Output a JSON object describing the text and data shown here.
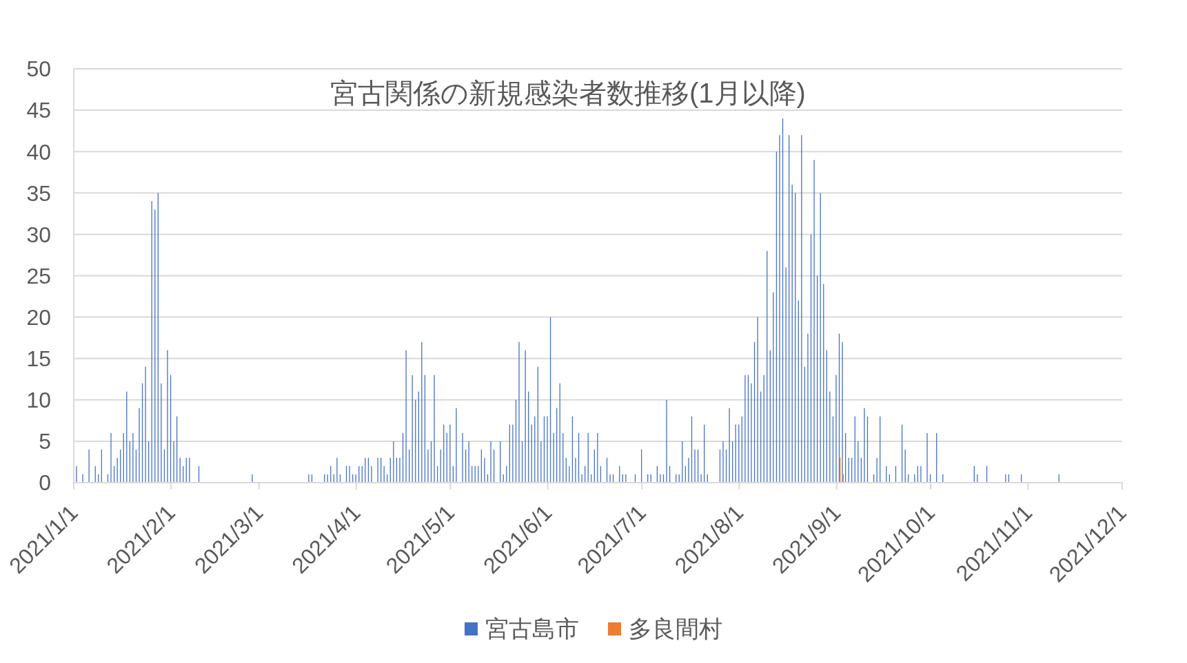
{
  "chart_data": {
    "type": "bar",
    "title": "宮古関係の新規感染者数推移(1月以降)",
    "xlim": [
      "2021-01-01",
      "2021-12-01"
    ],
    "xticks": [
      {
        "value": "2021-01-01",
        "label": "2021/1/1"
      },
      {
        "value": "2021-02-01",
        "label": "2021/2/1"
      },
      {
        "value": "2021-03-01",
        "label": "2021/3/1"
      },
      {
        "value": "2021-04-01",
        "label": "2021/4/1"
      },
      {
        "value": "2021-05-01",
        "label": "2021/5/1"
      },
      {
        "value": "2021-06-01",
        "label": "2021/6/1"
      },
      {
        "value": "2021-07-01",
        "label": "2021/7/1"
      },
      {
        "value": "2021-08-01",
        "label": "2021/8/1"
      },
      {
        "value": "2021-09-01",
        "label": "2021/9/1"
      },
      {
        "value": "2021-10-01",
        "label": "2021/10/1"
      },
      {
        "value": "2021-11-01",
        "label": "2021/11/1"
      },
      {
        "value": "2021-12-01",
        "label": "2021/12/1"
      }
    ],
    "ylim": [
      0,
      50
    ],
    "yticks": [
      0,
      5,
      10,
      15,
      20,
      25,
      30,
      35,
      40,
      45,
      50
    ],
    "grid": "y",
    "legend": "bottom",
    "series": [
      {
        "name": "宮古島市",
        "color": "#4472c4",
        "x": [
          "2021-01-02",
          "2021-01-04",
          "2021-01-06",
          "2021-01-08",
          "2021-01-09",
          "2021-01-10",
          "2021-01-12",
          "2021-01-13",
          "2021-01-14",
          "2021-01-15",
          "2021-01-16",
          "2021-01-17",
          "2021-01-18",
          "2021-01-19",
          "2021-01-20",
          "2021-01-21",
          "2021-01-22",
          "2021-01-23",
          "2021-01-24",
          "2021-01-25",
          "2021-01-26",
          "2021-01-27",
          "2021-01-28",
          "2021-01-29",
          "2021-01-30",
          "2021-01-31",
          "2021-02-01",
          "2021-02-02",
          "2021-02-03",
          "2021-02-04",
          "2021-02-05",
          "2021-02-06",
          "2021-02-07",
          "2021-02-10",
          "2021-02-27",
          "2021-03-17",
          "2021-03-18",
          "2021-03-22",
          "2021-03-23",
          "2021-03-24",
          "2021-03-25",
          "2021-03-26",
          "2021-03-27",
          "2021-03-29",
          "2021-03-30",
          "2021-03-31",
          "2021-04-01",
          "2021-04-02",
          "2021-04-03",
          "2021-04-04",
          "2021-04-05",
          "2021-04-06",
          "2021-04-08",
          "2021-04-09",
          "2021-04-10",
          "2021-04-11",
          "2021-04-12",
          "2021-04-13",
          "2021-04-14",
          "2021-04-15",
          "2021-04-16",
          "2021-04-17",
          "2021-04-18",
          "2021-04-19",
          "2021-04-20",
          "2021-04-21",
          "2021-04-22",
          "2021-04-23",
          "2021-04-24",
          "2021-04-25",
          "2021-04-26",
          "2021-04-27",
          "2021-04-28",
          "2021-04-29",
          "2021-04-30",
          "2021-05-01",
          "2021-05-02",
          "2021-05-03",
          "2021-05-05",
          "2021-05-06",
          "2021-05-07",
          "2021-05-08",
          "2021-05-09",
          "2021-05-10",
          "2021-05-11",
          "2021-05-12",
          "2021-05-13",
          "2021-05-14",
          "2021-05-15",
          "2021-05-17",
          "2021-05-18",
          "2021-05-19",
          "2021-05-20",
          "2021-05-21",
          "2021-05-22",
          "2021-05-23",
          "2021-05-24",
          "2021-05-25",
          "2021-05-26",
          "2021-05-27",
          "2021-05-28",
          "2021-05-29",
          "2021-05-30",
          "2021-05-31",
          "2021-06-01",
          "2021-06-02",
          "2021-06-03",
          "2021-06-04",
          "2021-06-05",
          "2021-06-06",
          "2021-06-07",
          "2021-06-08",
          "2021-06-09",
          "2021-06-10",
          "2021-06-11",
          "2021-06-12",
          "2021-06-13",
          "2021-06-14",
          "2021-06-15",
          "2021-06-16",
          "2021-06-17",
          "2021-06-18",
          "2021-06-20",
          "2021-06-21",
          "2021-06-22",
          "2021-06-24",
          "2021-06-25",
          "2021-06-26",
          "2021-06-29",
          "2021-07-01",
          "2021-07-03",
          "2021-07-04",
          "2021-07-06",
          "2021-07-07",
          "2021-07-08",
          "2021-07-09",
          "2021-07-10",
          "2021-07-12",
          "2021-07-13",
          "2021-07-14",
          "2021-07-15",
          "2021-07-16",
          "2021-07-17",
          "2021-07-18",
          "2021-07-19",
          "2021-07-20",
          "2021-07-21",
          "2021-07-22",
          "2021-07-26",
          "2021-07-27",
          "2021-07-28",
          "2021-07-29",
          "2021-07-30",
          "2021-07-31",
          "2021-08-01",
          "2021-08-02",
          "2021-08-03",
          "2021-08-04",
          "2021-08-05",
          "2021-08-06",
          "2021-08-07",
          "2021-08-08",
          "2021-08-09",
          "2021-08-10",
          "2021-08-11",
          "2021-08-12",
          "2021-08-13",
          "2021-08-14",
          "2021-08-15",
          "2021-08-16",
          "2021-08-17",
          "2021-08-18",
          "2021-08-19",
          "2021-08-20",
          "2021-08-21",
          "2021-08-22",
          "2021-08-23",
          "2021-08-24",
          "2021-08-25",
          "2021-08-26",
          "2021-08-27",
          "2021-08-28",
          "2021-08-29",
          "2021-08-30",
          "2021-08-31",
          "2021-09-01",
          "2021-09-02",
          "2021-09-03",
          "2021-09-04",
          "2021-09-05",
          "2021-09-06",
          "2021-09-07",
          "2021-09-08",
          "2021-09-09",
          "2021-09-10",
          "2021-09-11",
          "2021-09-13",
          "2021-09-14",
          "2021-09-15",
          "2021-09-17",
          "2021-09-18",
          "2021-09-20",
          "2021-09-22",
          "2021-09-23",
          "2021-09-24",
          "2021-09-26",
          "2021-09-27",
          "2021-09-28",
          "2021-09-30",
          "2021-10-01",
          "2021-10-03",
          "2021-10-05",
          "2021-10-15",
          "2021-10-16",
          "2021-10-19",
          "2021-10-25",
          "2021-10-26",
          "2021-10-30",
          "2021-11-11"
        ],
        "values": [
          2,
          1,
          4,
          2,
          1,
          4,
          1,
          6,
          2,
          3,
          4,
          6,
          11,
          5,
          6,
          4,
          9,
          12,
          14,
          5,
          34,
          33,
          35,
          12,
          4,
          16,
          13,
          5,
          8,
          3,
          2,
          3,
          3,
          2,
          1,
          1,
          1,
          1,
          1,
          2,
          1,
          3,
          1,
          2,
          2,
          1,
          1,
          2,
          2,
          3,
          3,
          2,
          3,
          3,
          2,
          1,
          3,
          5,
          3,
          3,
          6,
          16,
          4,
          13,
          10,
          11,
          17,
          13,
          4,
          5,
          13,
          2,
          4,
          7,
          6,
          7,
          2,
          9,
          6,
          4,
          5,
          2,
          2,
          2,
          4,
          3,
          1,
          5,
          4,
          5,
          1,
          2,
          7,
          7,
          10,
          17,
          5,
          16,
          11,
          7,
          8,
          14,
          5,
          8,
          8,
          20,
          6,
          9,
          12,
          6,
          3,
          2,
          8,
          3,
          6,
          1,
          2,
          6,
          1,
          4,
          6,
          2,
          3,
          1,
          1,
          2,
          1,
          1,
          1,
          4,
          1,
          1,
          2,
          1,
          1,
          10,
          2,
          1,
          1,
          5,
          2,
          3,
          8,
          4,
          4,
          1,
          7,
          1,
          4,
          5,
          4,
          9,
          5,
          7,
          7,
          8,
          13,
          13,
          12,
          17,
          20,
          11,
          13,
          28,
          16,
          23,
          40,
          42,
          44,
          26,
          42,
          36,
          35,
          22,
          42,
          14,
          18,
          30,
          39,
          25,
          35,
          24,
          16,
          11,
          8,
          13,
          18,
          17,
          6,
          3,
          3,
          8,
          5,
          3,
          9,
          8,
          1,
          3,
          8,
          2,
          1,
          2,
          7,
          4,
          1,
          1,
          2,
          2,
          6,
          1,
          6,
          1,
          2,
          1,
          2,
          1,
          1,
          1,
          1
        ]
      },
      {
        "name": "多良間村",
        "color": "#ed7d31",
        "x": [
          "2021-09-02",
          "2021-09-03"
        ],
        "values": [
          3,
          1
        ]
      }
    ]
  }
}
